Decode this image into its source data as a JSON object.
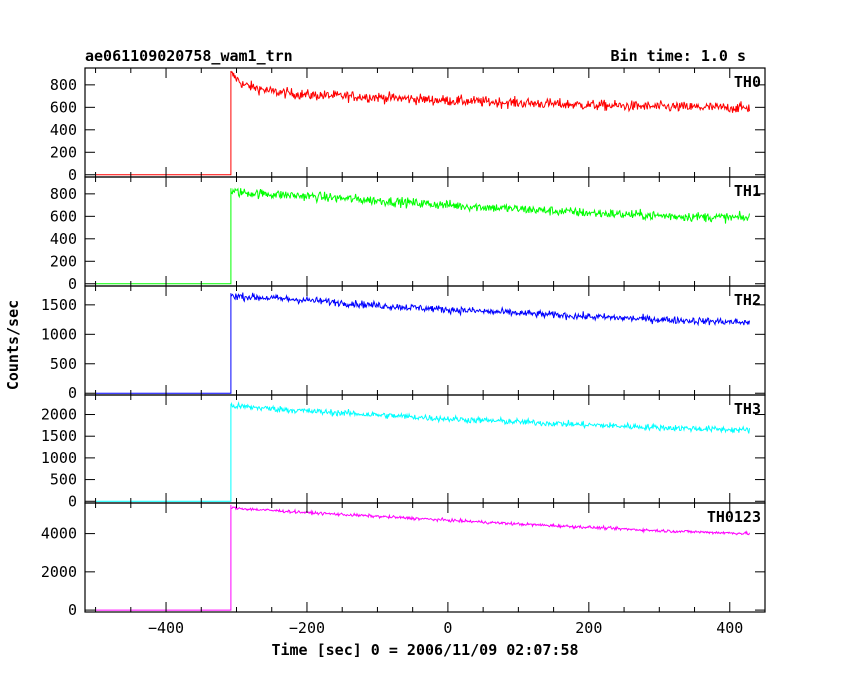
{
  "chart_data": {
    "type": "line",
    "title": "ae061109020758_wam1_trn",
    "bin_label": "Bin time: 1.0 s",
    "xlabel": "Time [sec] 0 = 2006/11/09 02:07:58",
    "ylabel": "Counts/sec",
    "xlim": [
      -515,
      450
    ],
    "xticks": [
      -400,
      -200,
      0,
      200,
      400
    ],
    "xtick_labels": [
      "−400",
      "−200",
      "0",
      "200",
      "400"
    ],
    "x_start": -500,
    "x_end": 428,
    "onset_x": -308,
    "series": [
      {
        "name": "TH0",
        "color": "#ff0000",
        "ylim": [
          -20,
          950
        ],
        "yticks": [
          0,
          200,
          400,
          600,
          800
        ],
        "ytick_labels": [
          "0",
          "200",
          "400",
          "600",
          "800"
        ],
        "pre_level": 0,
        "peak": 900,
        "shape": [
          [
            -308,
            900
          ],
          [
            -290,
            800
          ],
          [
            -250,
            740
          ],
          [
            -200,
            710
          ],
          [
            -100,
            690
          ],
          [
            0,
            660
          ],
          [
            100,
            640
          ],
          [
            200,
            620
          ],
          [
            300,
            605
          ],
          [
            428,
            595
          ]
        ],
        "noise": 42
      },
      {
        "name": "TH1",
        "color": "#00ff00",
        "ylim": [
          -20,
          950
        ],
        "yticks": [
          0,
          200,
          400,
          600,
          800
        ],
        "ytick_labels": [
          "0",
          "200",
          "400",
          "600",
          "800"
        ],
        "pre_level": 0,
        "peak": 850,
        "shape": [
          [
            -308,
            820
          ],
          [
            -290,
            810
          ],
          [
            -200,
            780
          ],
          [
            -100,
            740
          ],
          [
            0,
            700
          ],
          [
            100,
            665
          ],
          [
            200,
            630
          ],
          [
            300,
            605
          ],
          [
            428,
            585
          ]
        ],
        "noise": 38
      },
      {
        "name": "TH2",
        "color": "#0000ff",
        "ylim": [
          -30,
          1820
        ],
        "yticks": [
          0,
          500,
          1000,
          1500
        ],
        "ytick_labels": [
          "0",
          "500",
          "1000",
          "1500"
        ],
        "pre_level": 0,
        "peak": 1700,
        "shape": [
          [
            -308,
            1660
          ],
          [
            -290,
            1640
          ],
          [
            -200,
            1580
          ],
          [
            -100,
            1490
          ],
          [
            0,
            1420
          ],
          [
            100,
            1360
          ],
          [
            200,
            1300
          ],
          [
            300,
            1250
          ],
          [
            428,
            1200
          ]
        ],
        "noise": 55
      },
      {
        "name": "TH3",
        "color": "#00ffff",
        "ylim": [
          -40,
          2450
        ],
        "yticks": [
          0,
          500,
          1000,
          1500,
          2000
        ],
        "ytick_labels": [
          "0",
          "500",
          "1000",
          "1500",
          "2000"
        ],
        "pre_level": 0,
        "peak": 2250,
        "shape": [
          [
            -308,
            2200
          ],
          [
            -290,
            2180
          ],
          [
            -200,
            2080
          ],
          [
            -100,
            1990
          ],
          [
            0,
            1900
          ],
          [
            100,
            1830
          ],
          [
            200,
            1760
          ],
          [
            300,
            1700
          ],
          [
            428,
            1640
          ]
        ],
        "noise": 65
      },
      {
        "name": "TH0123",
        "color": "#ff00ff",
        "ylim": [
          -100,
          5600
        ],
        "yticks": [
          0,
          2000,
          4000
        ],
        "ytick_labels": [
          "0",
          "2000",
          "4000"
        ],
        "pre_level": 0,
        "peak": 5500,
        "shape": [
          [
            -308,
            5350
          ],
          [
            -290,
            5300
          ],
          [
            -200,
            5100
          ],
          [
            -100,
            4900
          ],
          [
            0,
            4700
          ],
          [
            100,
            4500
          ],
          [
            200,
            4330
          ],
          [
            300,
            4150
          ],
          [
            428,
            4000
          ]
        ],
        "noise": 70
      }
    ]
  }
}
